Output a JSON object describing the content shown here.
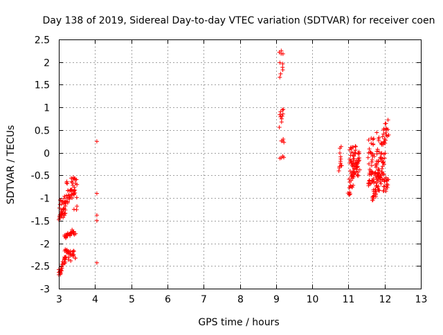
{
  "chart_data": {
    "type": "scatter",
    "title": "Day 138 of 2019, Sidereal Day-to-day VTEC variation (SDTVAR) for receiver coen",
    "xlabel": "GPS time / hours",
    "ylabel": "SDTVAR / TECUs",
    "xlim": [
      3,
      13
    ],
    "ylim": [
      -3,
      2.5
    ],
    "xticks": [
      "3",
      "4",
      "5",
      "6",
      "7",
      "8",
      "9",
      "10",
      "11",
      "12",
      "13"
    ],
    "yticks": [
      "2.5",
      "2",
      "1.5",
      "1",
      "0.5",
      "0",
      "-0.5",
      "-1",
      "-1.5",
      "-2",
      "-2.5",
      "-3"
    ],
    "grid": true,
    "marker": "plus",
    "color": "#ff0000",
    "series": [
      {
        "name": "SDTVAR",
        "segments": [
          {
            "x0": 3.0,
            "x1": 3.2,
            "y0": -1.45,
            "y1": -1.05,
            "n": 35
          },
          {
            "x0": 3.0,
            "x1": 3.05,
            "y0": -2.7,
            "y1": -2.55,
            "n": 8
          },
          {
            "x0": 3.05,
            "x1": 3.2,
            "y0": -2.6,
            "y1": -2.15,
            "n": 20
          },
          {
            "x0": 3.15,
            "x1": 3.45,
            "y0": -2.15,
            "y1": -2.35,
            "n": 28
          },
          {
            "x0": 3.15,
            "x1": 3.3,
            "y0": -1.85,
            "y1": -1.8,
            "n": 14
          },
          {
            "x0": 3.3,
            "x1": 3.45,
            "y0": -1.8,
            "y1": -1.72,
            "n": 12
          },
          {
            "x0": 3.2,
            "x1": 3.45,
            "y0": -1.1,
            "y1": -0.55,
            "n": 30
          },
          {
            "x0": 3.35,
            "x1": 3.5,
            "y0": -0.55,
            "y1": -0.7,
            "n": 10
          },
          {
            "x0": 3.4,
            "x1": 3.5,
            "y0": -0.8,
            "y1": -1.25,
            "n": 8
          },
          {
            "x0": 3.05,
            "x1": 3.25,
            "y0": -1.15,
            "y1": -0.9,
            "n": 10
          },
          {
            "x0": 9.1,
            "x1": 9.2,
            "y0": -0.15,
            "y1": 0.05,
            "n": 4
          },
          {
            "x0": 9.15,
            "x1": 9.2,
            "y0": 0.1,
            "y1": 0.4,
            "n": 4
          },
          {
            "x0": 9.1,
            "x1": 9.2,
            "y0": 0.6,
            "y1": 1.0,
            "n": 10
          },
          {
            "x0": 9.1,
            "x1": 9.2,
            "y0": 1.65,
            "y1": 2.27,
            "n": 10
          },
          {
            "x0": 10.75,
            "x1": 10.8,
            "y0": -0.4,
            "y1": 0.25,
            "n": 12
          },
          {
            "x0": 11.0,
            "x1": 11.15,
            "y0": -0.95,
            "y1": 0.15,
            "n": 30
          },
          {
            "x0": 11.05,
            "x1": 11.3,
            "y0": -0.6,
            "y1": 0.15,
            "n": 40
          },
          {
            "x0": 11.15,
            "x1": 11.3,
            "y0": -0.45,
            "y1": 0.1,
            "n": 20
          },
          {
            "x0": 11.55,
            "x1": 11.7,
            "y0": -0.75,
            "y1": 0.35,
            "n": 40
          },
          {
            "x0": 11.65,
            "x1": 11.85,
            "y0": -1.05,
            "y1": -0.2,
            "n": 40
          },
          {
            "x0": 11.75,
            "x1": 11.95,
            "y0": -0.85,
            "y1": 0.5,
            "n": 40
          },
          {
            "x0": 11.85,
            "x1": 12.0,
            "y0": -0.6,
            "y1": 0.0,
            "n": 25
          },
          {
            "x0": 11.95,
            "x1": 12.1,
            "y0": 0.2,
            "y1": 0.72,
            "n": 20
          },
          {
            "x0": 11.95,
            "x1": 12.1,
            "y0": -0.85,
            "y1": -0.55,
            "n": 20
          }
        ],
        "points": [
          [
            4.05,
            0.25
          ],
          [
            4.05,
            -0.9
          ],
          [
            4.05,
            -1.38
          ],
          [
            4.05,
            -1.5
          ],
          [
            4.05,
            -2.43
          ]
        ]
      }
    ]
  }
}
